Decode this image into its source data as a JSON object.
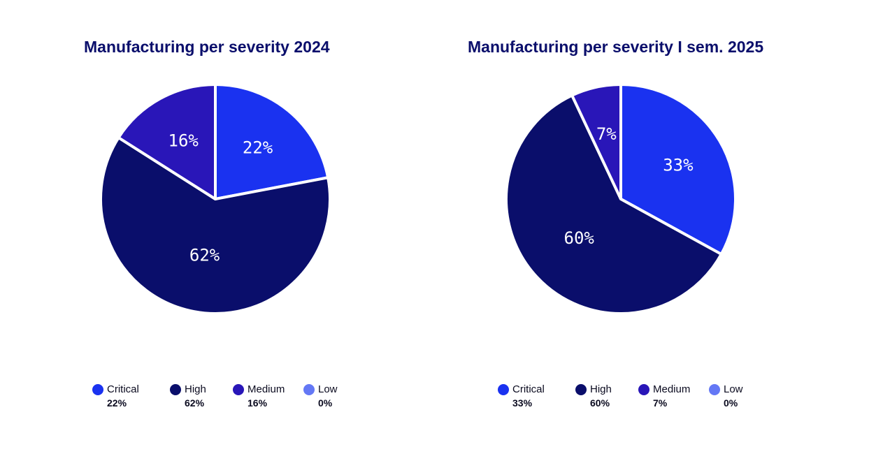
{
  "chart_data": [
    {
      "type": "pie",
      "title": "Manufacturing per severity 2024",
      "slices": [
        {
          "name": "Critical",
          "value": 22,
          "label": "22%",
          "color": "#1a32f0"
        },
        {
          "name": "High",
          "value": 62,
          "label": "62%",
          "color": "#0a0e6b"
        },
        {
          "name": "Medium",
          "value": 16,
          "label": "16%",
          "color": "#2916b8"
        },
        {
          "name": "Low",
          "value": 0,
          "label": "0%",
          "color": "#6478f5"
        }
      ],
      "legend_placement": "bottom"
    },
    {
      "type": "pie",
      "title": "Manufacturing per severity I sem. 2025",
      "slices": [
        {
          "name": "Critical",
          "value": 33,
          "label": "33%",
          "color": "#1a32f0"
        },
        {
          "name": "High",
          "value": 60,
          "label": "60%",
          "color": "#0a0e6b"
        },
        {
          "name": "Medium",
          "value": 7,
          "label": "7%",
          "color": "#2916b8"
        },
        {
          "name": "Low",
          "value": 0,
          "label": "0%",
          "color": "#6478f5"
        }
      ],
      "legend_placement": "bottom"
    }
  ]
}
